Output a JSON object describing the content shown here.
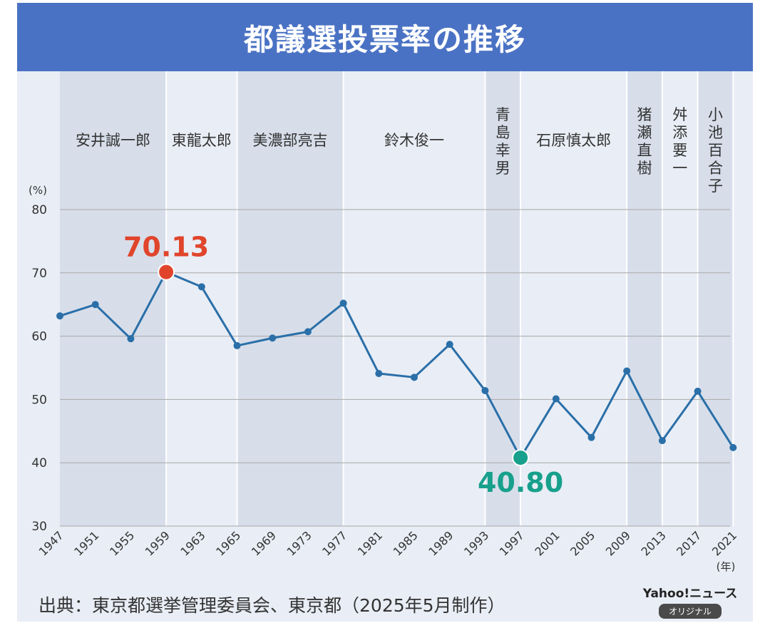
{
  "title": "都議選投票率の推移",
  "source": "出典：東京都選挙管理委員会、東京都（2025年5月制作）",
  "brand": {
    "name": "Yahoo!ニュース",
    "badge": "オリジナル"
  },
  "colors": {
    "header": "#4a72c4",
    "line": "#2a6fa8",
    "max_marker": "#e0452c",
    "min_marker": "#17a08c",
    "shade": "#d7deea",
    "background": "#e9edf5"
  },
  "governors": [
    {
      "name": "安井誠一郎",
      "from": "1947",
      "to": "1959",
      "shaded": true,
      "vertical": false
    },
    {
      "name": "東龍太郎",
      "from": "1959",
      "to": "1965",
      "shaded": false,
      "vertical": false
    },
    {
      "name": "美濃部亮吉",
      "from": "1965",
      "to": "1977",
      "shaded": true,
      "vertical": false
    },
    {
      "name": "鈴木俊一",
      "from": "1977",
      "to": "1993",
      "shaded": false,
      "vertical": false
    },
    {
      "name": "青島幸男",
      "from": "1993",
      "to": "1997",
      "shaded": true,
      "vertical": true
    },
    {
      "name": "石原慎太郎",
      "from": "1997",
      "to": "2009",
      "shaded": false,
      "vertical": false
    },
    {
      "name": "猪瀬直樹",
      "from": "2009",
      "to": "2013",
      "shaded": true,
      "vertical": true
    },
    {
      "name": "舛添要一",
      "from": "2013",
      "to": "2017",
      "shaded": false,
      "vertical": true
    },
    {
      "name": "小池百合子",
      "from": "2017",
      "to": "2021",
      "shaded": true,
      "vertical": true
    }
  ],
  "chart_data": {
    "type": "line",
    "title": "都議選投票率の推移",
    "unit": "(%)",
    "x_unit": "(年)",
    "categories": [
      "1947",
      "1951",
      "1955",
      "1959",
      "1963",
      "1965",
      "1969",
      "1973",
      "1977",
      "1981",
      "1985",
      "1989",
      "1993",
      "1997",
      "2001",
      "2005",
      "2009",
      "2013",
      "2017",
      "2021"
    ],
    "series": [
      {
        "values": [
          63.2,
          65.0,
          59.6,
          70.13,
          67.8,
          58.5,
          59.7,
          60.7,
          65.2,
          54.1,
          53.5,
          58.7,
          51.4,
          40.8,
          50.1,
          44.0,
          54.5,
          43.5,
          51.3,
          42.4
        ]
      }
    ],
    "ylim": [
      30,
      80
    ],
    "yticks": [
      30,
      40,
      50,
      60,
      70,
      80
    ],
    "grid": true,
    "annotations": [
      {
        "label": "70.13",
        "category": "1959",
        "value": 70.13,
        "kind": "max"
      },
      {
        "label": "40.80",
        "category": "1997",
        "value": 40.8,
        "kind": "min"
      }
    ]
  }
}
